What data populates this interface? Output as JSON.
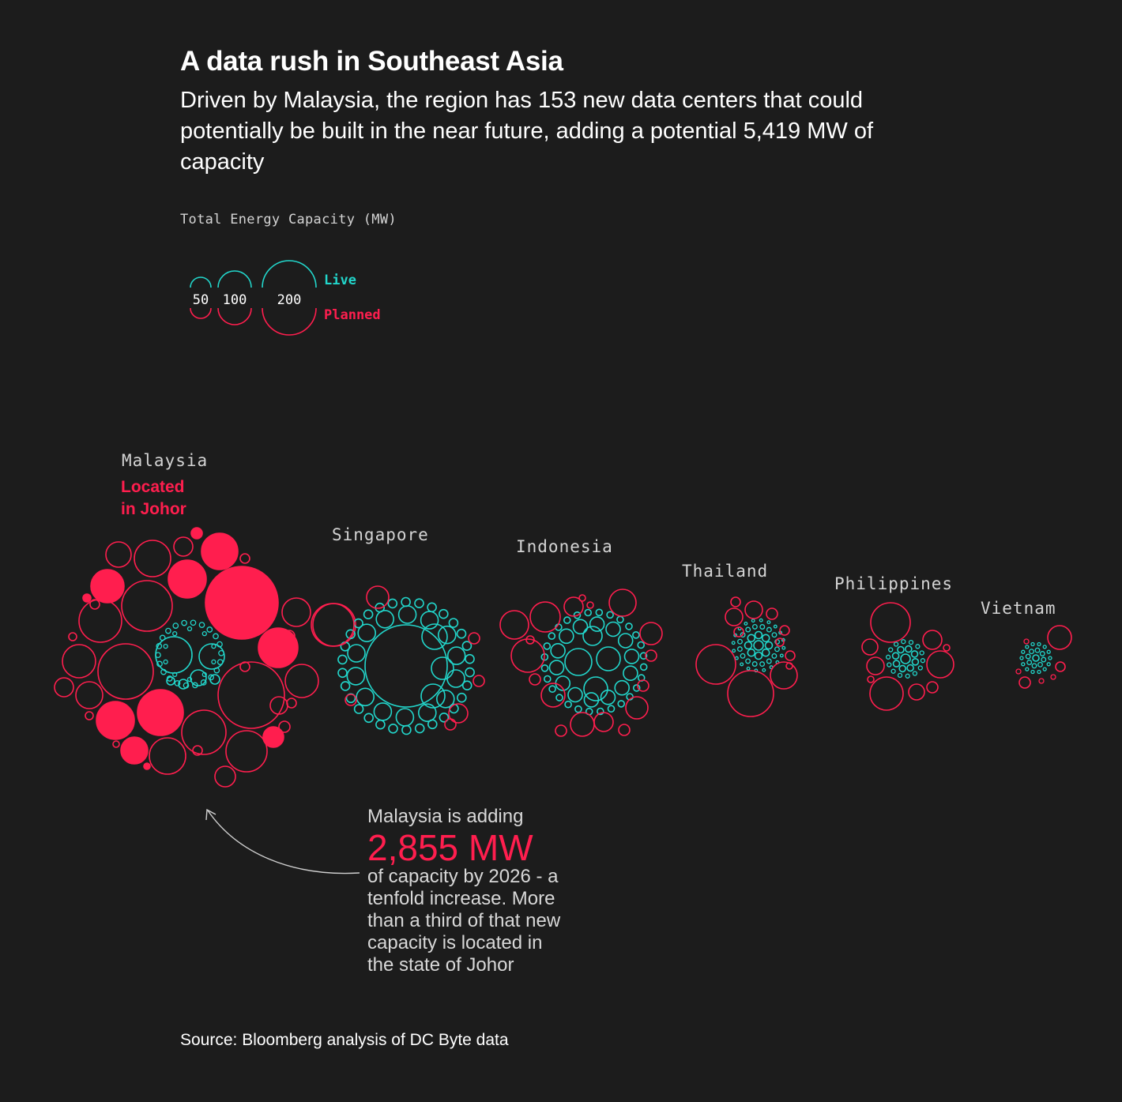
{
  "header": {
    "title": "A data rush in Southeast Asia",
    "subtitle": "Driven by Malaysia, the region has 153 new data centers that could potentially be built in the near future, adding a potential 5,419 MW of capacity"
  },
  "legend": {
    "title": "Total Energy Capacity (MW)",
    "sizes": [
      50,
      100,
      200
    ],
    "live_label": "Live",
    "planned_label": "Planned"
  },
  "colors": {
    "live": "#22d6cb",
    "planned": "#ff1e4e",
    "background": "#1c1c1c",
    "text": "#ffffff",
    "muted": "#d4d4d4",
    "callout_arrow": "#cfcfcf"
  },
  "chart_data": {
    "type": "bubble-cluster",
    "size_measure": "Total Energy Capacity (MW)",
    "countries": [
      {
        "name": "Malaysia",
        "highlight_label": "Located in Johor"
      },
      {
        "name": "Singapore"
      },
      {
        "name": "Indonesia"
      },
      {
        "name": "Thailand"
      },
      {
        "name": "Philippines"
      },
      {
        "name": "Vietnam"
      }
    ]
  },
  "annotation": {
    "lead": "Malaysia is adding",
    "value": "2,855 MW",
    "body": "of capacity by 2026 - a tenfold increase. More than a third of that new capacity is located in the state of Johor"
  },
  "source": "Source: Bloomberg analysis of DC Byte data"
}
